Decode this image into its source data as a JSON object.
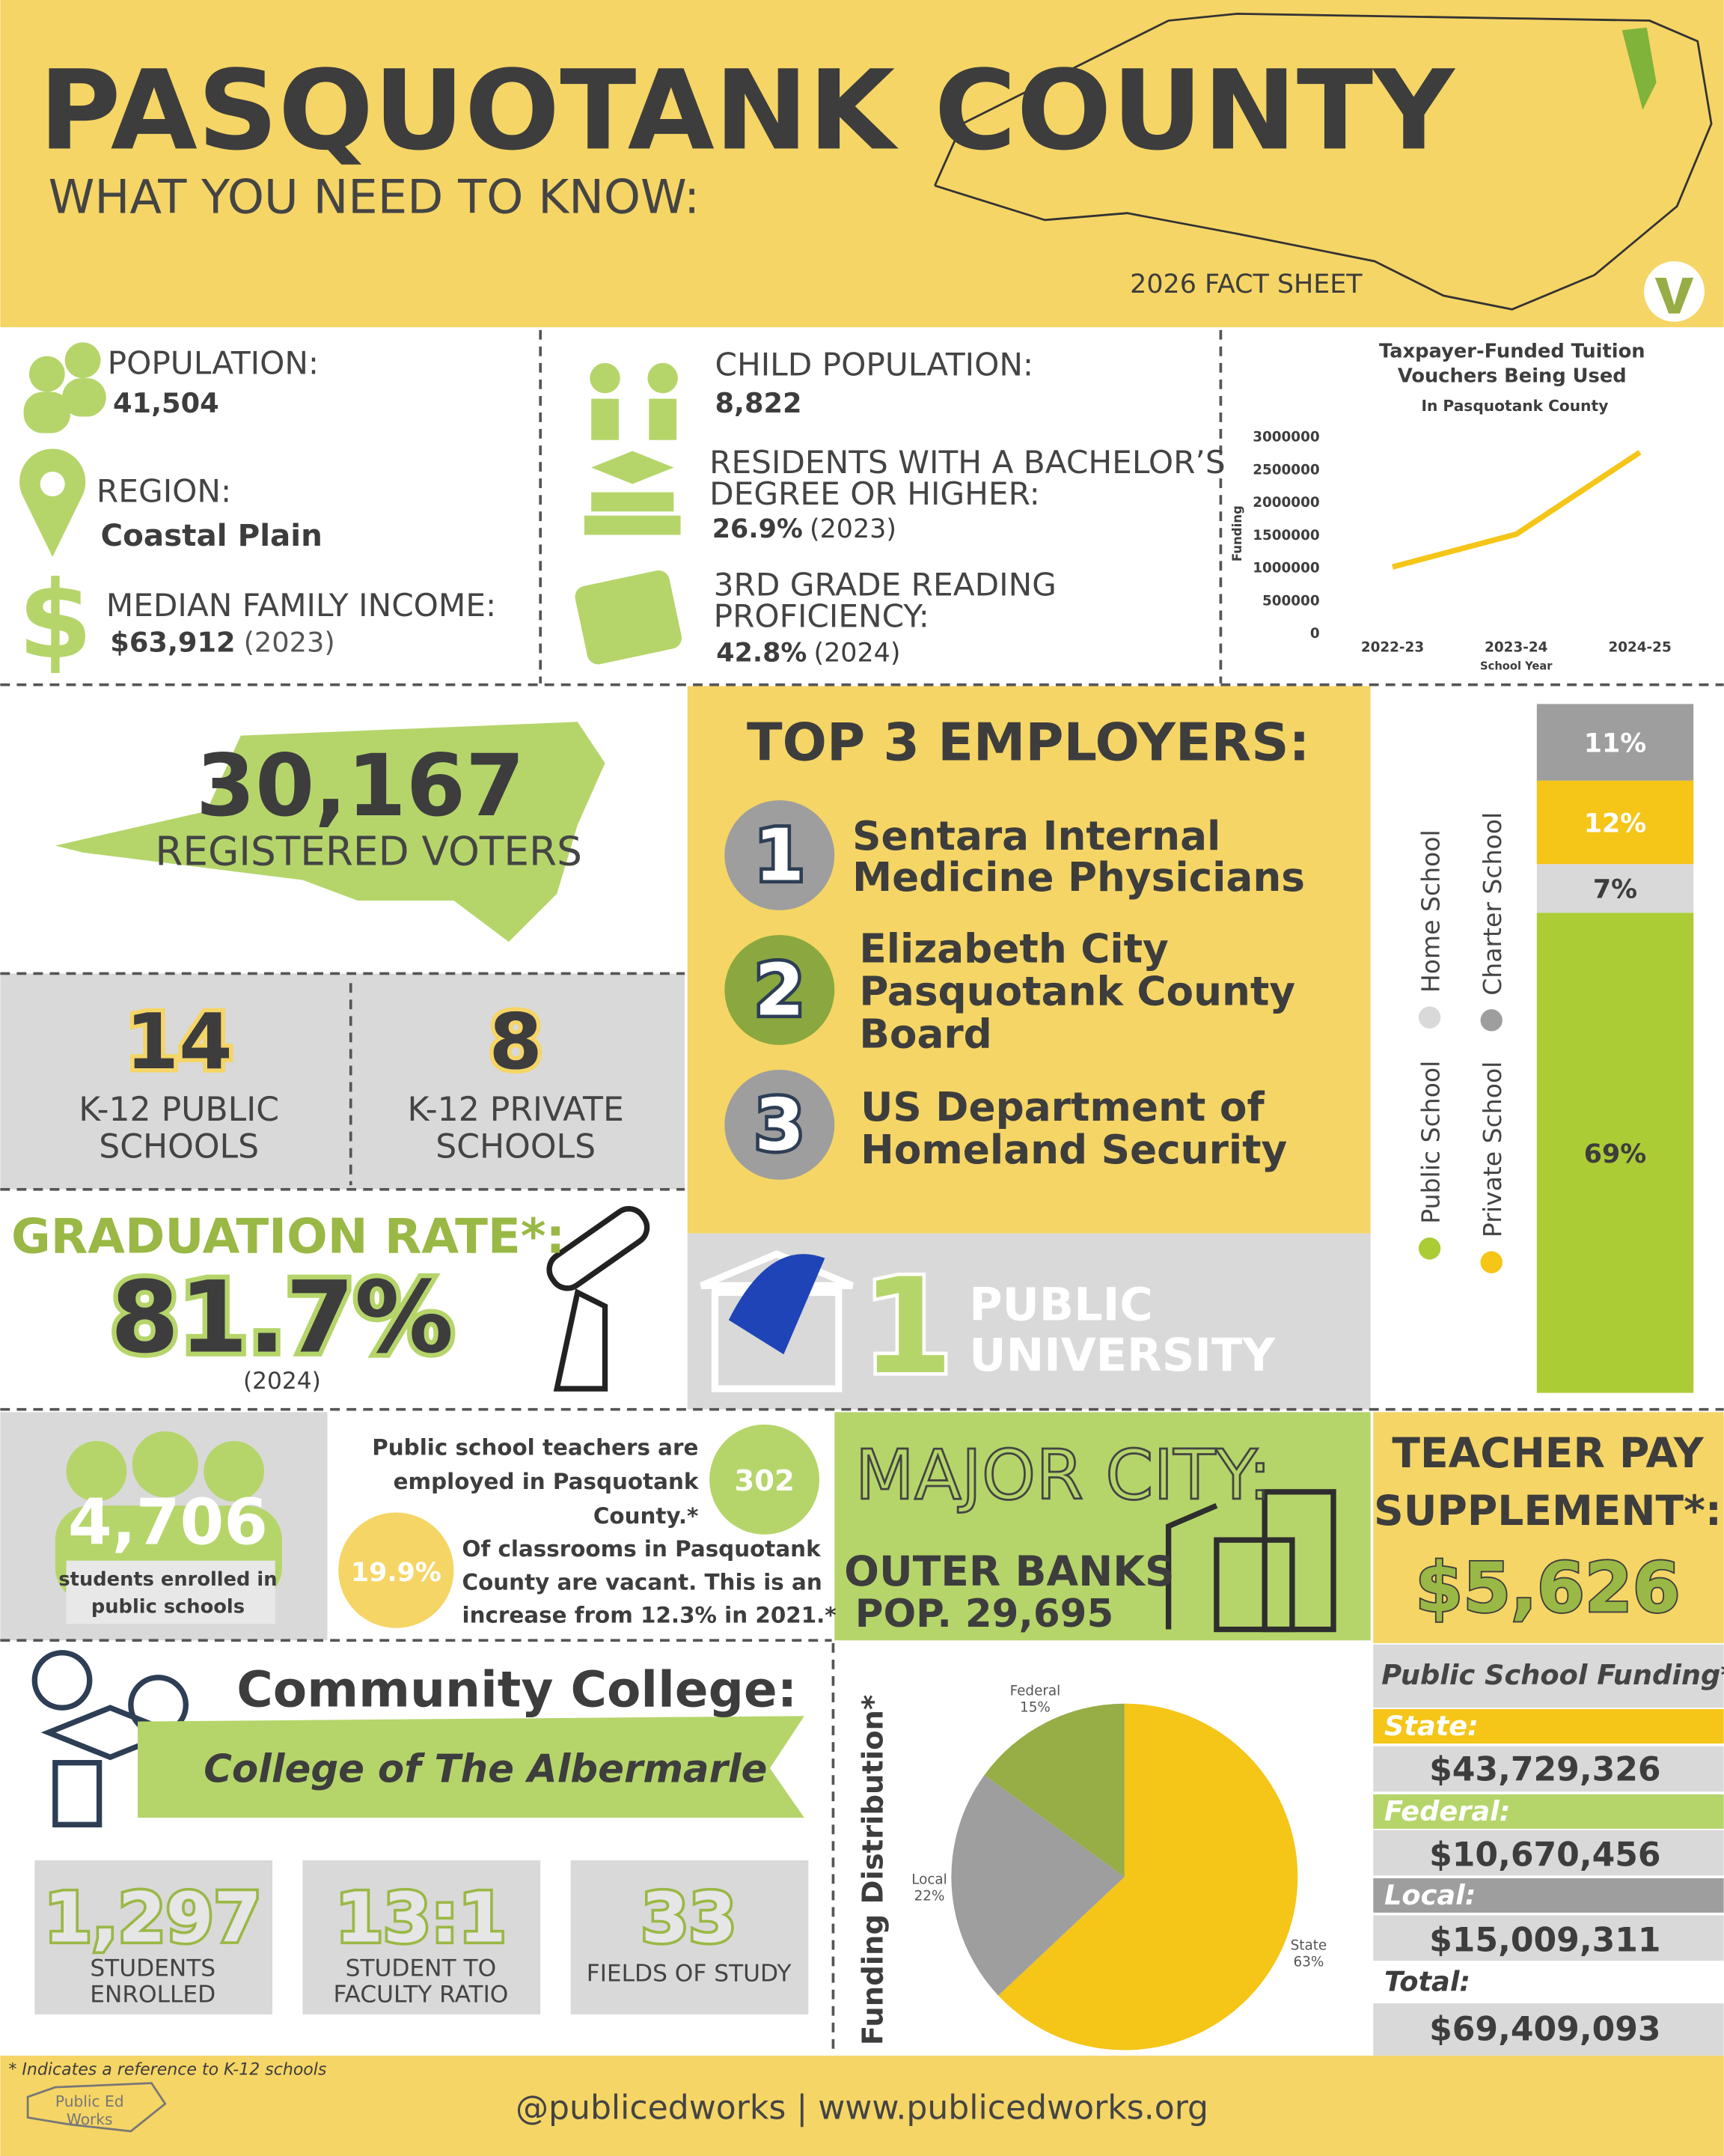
{
  "header": {
    "title": "PASQUOTANK COUNTY",
    "subtitle": "WHAT YOU NEED TO KNOW:",
    "fact_sheet": "2026 FACT SHEET"
  },
  "facts": {
    "population": {
      "label": "POPULATION:",
      "value": "41,504"
    },
    "region": {
      "label": "REGION:",
      "value": "Coastal Plain"
    },
    "income": {
      "label": "MEDIAN FAMILY INCOME:",
      "value": "$63,912",
      "year": "(2023)"
    },
    "child_population": {
      "label": "CHILD POPULATION:",
      "value": "8,822"
    },
    "bachelors": {
      "label_lines": [
        "RESIDENTS WITH A BACHELOR’S",
        "DEGREE OR HIGHER:"
      ],
      "value": "26.9%",
      "year": "(2023)"
    },
    "reading": {
      "label_lines": [
        "3RD GRADE READING",
        "PROFICIENCY:"
      ],
      "value": "42.8%",
      "year": "(2024)"
    }
  },
  "voucher_chart": {
    "type": "line",
    "title_lines": [
      "Taxpayer-Funded Tuition",
      "Vouchers Being Used"
    ],
    "subtitle": "In Pasquotank County",
    "x_label": "School Year",
    "y_label": "Funding",
    "categories": [
      "2022-23",
      "2023-24",
      "2024-25"
    ],
    "values": [
      1000000,
      1500000,
      2750000
    ],
    "color": "#f5c518",
    "ylim": [
      0,
      3000000
    ],
    "yticks": [
      0,
      500000,
      1000000,
      1500000,
      2000000,
      2500000,
      3000000
    ]
  },
  "voters": {
    "value": "30,167",
    "label": "REGISTERED VOTERS"
  },
  "schools": [
    {
      "value": "14",
      "label_lines": [
        "K-12 PUBLIC",
        "SCHOOLS"
      ]
    },
    {
      "value": "8",
      "label_lines": [
        "K-12 PRIVATE",
        "SCHOOLS"
      ]
    }
  ],
  "graduation": {
    "label": "GRADUATION RATE*:",
    "value": "81.7%",
    "year": "(2024)"
  },
  "employers": {
    "title": "TOP 3 EMPLOYERS:",
    "items": [
      {
        "rank": "1",
        "name_lines": [
          "Sentara Internal",
          "Medicine Physicians"
        ]
      },
      {
        "rank": "2",
        "name_lines": [
          "Elizabeth City",
          "Pasquotank County",
          "Board"
        ]
      },
      {
        "rank": "3",
        "name_lines": [
          "US Department of",
          "Homeland Security"
        ]
      }
    ]
  },
  "university": {
    "count": "1",
    "label_lines": [
      "PUBLIC",
      "UNIVERSITY"
    ]
  },
  "school_type_chart": {
    "type": "stacked_bar",
    "series": [
      {
        "name": "Public School",
        "color": "#abcc35",
        "values": [
          69
        ],
        "value_labels": [
          "69%"
        ]
      },
      {
        "name": "Home School",
        "color": "#d9d9d9",
        "values": [
          7
        ],
        "value_labels": [
          "7%"
        ]
      },
      {
        "name": "Private School",
        "color": "#f5c518",
        "values": [
          12
        ],
        "value_labels": [
          "12%"
        ]
      },
      {
        "name": "Charter School",
        "color": "#9e9e9e",
        "values": [
          11
        ],
        "value_labels": [
          "11%"
        ]
      }
    ]
  },
  "enrollment": {
    "value": "4,706",
    "label_lines": [
      "students enrolled in",
      "public schools"
    ]
  },
  "teachers": {
    "value": "302",
    "text_lines": [
      "Public school teachers are",
      "employed in Pasquotank",
      "County.*"
    ]
  },
  "vacancies": {
    "value": "19.9%",
    "text_lines": [
      "Of classrooms in Pasquotank",
      "County are vacant. This is an",
      "increase from 12.3% in 2021.*"
    ]
  },
  "major_city": {
    "title": "MAJOR CITY:",
    "name": "OUTER BANKS",
    "population": "POP. 29,695"
  },
  "teacher_pay": {
    "title_lines": [
      "TEACHER PAY",
      "SUPPLEMENT*:"
    ],
    "value": "$5,626"
  },
  "community_college": {
    "title": "Community College:",
    "name": "College of The Albermarle",
    "stats": [
      {
        "value": "1,297",
        "label_lines": [
          "STUDENTS",
          "ENROLLED"
        ]
      },
      {
        "value": "13:1",
        "label_lines": [
          "STUDENT TO",
          "FACULTY RATIO"
        ]
      },
      {
        "value": "33",
        "label_lines": [
          "FIELDS OF STUDY"
        ]
      }
    ]
  },
  "funding_chart": {
    "type": "pie",
    "title": "Funding Distribution*",
    "categories": [
      "State",
      "Local",
      "Federal"
    ],
    "values": [
      63,
      22,
      15
    ],
    "value_labels": [
      "63%",
      "22%",
      "15%"
    ],
    "colors": [
      "#f5c518",
      "#9e9e9e",
      "#97ad45"
    ]
  },
  "funding": {
    "title": "Public School Funding*",
    "items": [
      {
        "label": "State:",
        "value": "$43,729,326"
      },
      {
        "label": "Federal:",
        "value": "$10,670,456"
      },
      {
        "label": "Local:",
        "value": "$15,009,311"
      }
    ],
    "total": {
      "label": "Total:",
      "value": "$69,409,093"
    }
  },
  "footer": {
    "note": "* Indicates a reference to K-12 schools",
    "logo_lines": [
      "Public Ed",
      "Works"
    ],
    "links": "@publicedworks | www.publicedworks.org"
  }
}
